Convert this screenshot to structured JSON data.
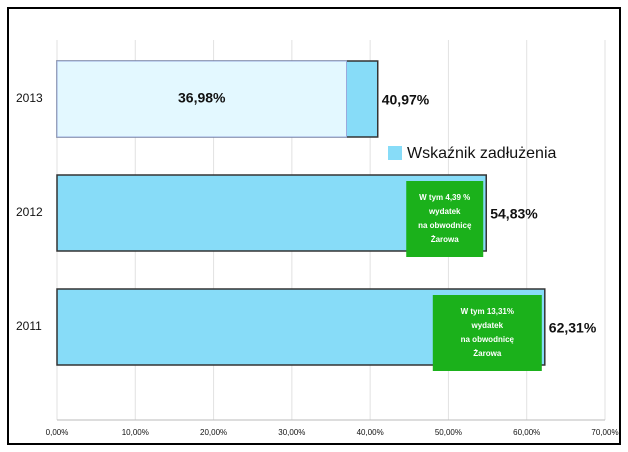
{
  "chart_data": {
    "type": "bar",
    "orientation": "horizontal",
    "categories": [
      "2013",
      "2012",
      "2011"
    ],
    "series": [
      {
        "name": "Wskaźnik zadłużenia",
        "color": "#87dcf8",
        "values": [
          40.97,
          54.83,
          62.31
        ],
        "value_labels": [
          "40,97%",
          "54,83%",
          "62,31%"
        ]
      }
    ],
    "inner_segments": [
      {
        "category": 0,
        "value": 36.98,
        "label": "36,98%",
        "color": "#e3f8ff"
      }
    ],
    "annotations": [
      {
        "category": 1,
        "color": "#1bb11b",
        "lines": [
          "W tym 4,39 %",
          "wydatek",
          "na obwodnicę",
          "Żarowa"
        ]
      },
      {
        "category": 2,
        "color": "#1bb11b",
        "lines": [
          "W tym 13,31%",
          "wydatek",
          "na obwodnicę",
          "Żarowa"
        ]
      }
    ],
    "xlim": [
      0,
      70
    ],
    "xticks": [
      {
        "value": 0,
        "label": "0,00%"
      },
      {
        "value": 10,
        "label": "10,00%"
      },
      {
        "value": 20,
        "label": "20,00%"
      },
      {
        "value": 30,
        "label": "30,00%"
      },
      {
        "value": 40,
        "label": "40,00%"
      },
      {
        "value": 50,
        "label": "50,00%"
      },
      {
        "value": 60,
        "label": "60,00%"
      },
      {
        "value": 70,
        "label": "70,00%"
      }
    ],
    "grid": true,
    "legend": "right"
  }
}
